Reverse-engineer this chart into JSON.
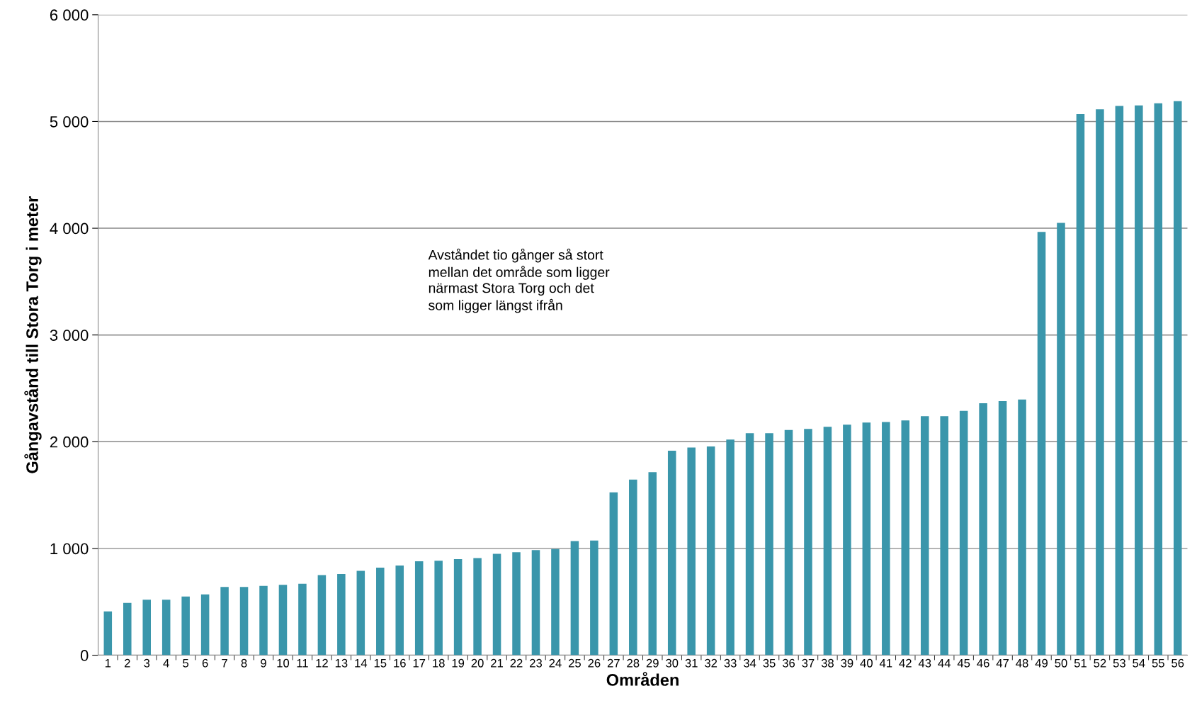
{
  "chart_data": {
    "type": "bar",
    "xlabel": "Områden",
    "ylabel": "Gångavstånd till Stora Torg i meter",
    "categories": [
      "1",
      "2",
      "3",
      "4",
      "5",
      "6",
      "7",
      "8",
      "9",
      "10",
      "11",
      "12",
      "13",
      "14",
      "15",
      "16",
      "17",
      "18",
      "19",
      "20",
      "21",
      "22",
      "23",
      "24",
      "25",
      "26",
      "27",
      "28",
      "29",
      "30",
      "31",
      "32",
      "33",
      "34",
      "35",
      "36",
      "37",
      "38",
      "39",
      "40",
      "41",
      "42",
      "43",
      "44",
      "45",
      "46",
      "47",
      "48",
      "49",
      "50",
      "51",
      "52",
      "53",
      "54",
      "55",
      "56"
    ],
    "values": [
      410,
      490,
      520,
      520,
      550,
      570,
      640,
      640,
      650,
      660,
      670,
      750,
      760,
      790,
      820,
      840,
      880,
      885,
      900,
      910,
      950,
      965,
      985,
      995,
      1070,
      1075,
      1525,
      1645,
      1715,
      1915,
      1945,
      1955,
      2020,
      2080,
      2080,
      2110,
      2120,
      2140,
      2160,
      2180,
      2185,
      2200,
      2240,
      2240,
      2290,
      2360,
      2380,
      2395,
      3965,
      4050,
      5070,
      5115,
      5145,
      5150,
      5170,
      5190
    ],
    "color": "#3a96ab",
    "ylim": [
      0,
      6000
    ],
    "yticks": [
      0,
      {
        "value": 1000,
        "label": "1 000"
      },
      {
        "value": 2000,
        "label": "2 000"
      },
      {
        "value": 3000,
        "label": "3 000"
      },
      {
        "value": 4000,
        "label": "4 000"
      },
      {
        "value": 5000,
        "label": "5 000"
      },
      {
        "value": 6000,
        "label": "6 000"
      }
    ],
    "grid": "y",
    "annotations": [
      "Avståndet tio gånger så stort\nmellan det område som ligger\nnärmast Stora Torg och det\nsom ligger längst ifrån"
    ]
  }
}
